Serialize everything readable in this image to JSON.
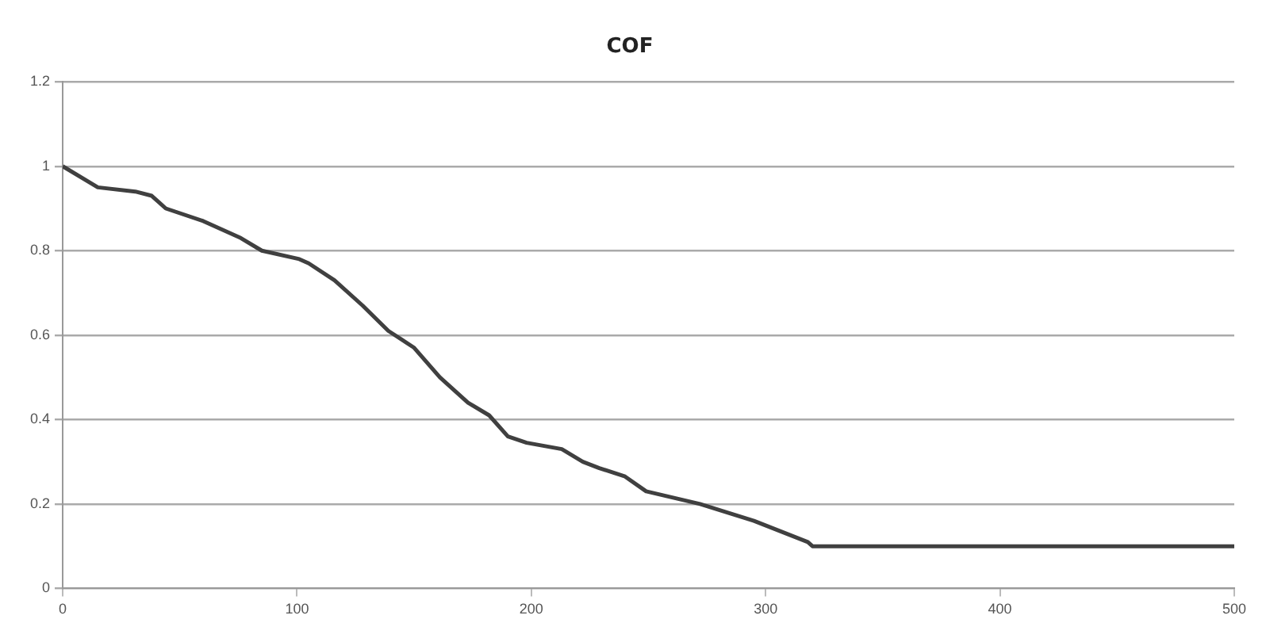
{
  "chart_data": {
    "type": "line",
    "title": "COF",
    "x": [
      0,
      15,
      31,
      38,
      44,
      60,
      76,
      85,
      101,
      105,
      116,
      128,
      139,
      150,
      161,
      173,
      182,
      190,
      198,
      213,
      222,
      229,
      240,
      249,
      272,
      295,
      318,
      320,
      500
    ],
    "series": [
      {
        "color": "#404040",
        "values": [
          1.0,
          0.95,
          0.94,
          0.93,
          0.9,
          0.87,
          0.83,
          0.8,
          0.78,
          0.77,
          0.73,
          0.67,
          0.61,
          0.57,
          0.5,
          0.44,
          0.41,
          0.36,
          0.345,
          0.33,
          0.3,
          0.285,
          0.265,
          0.23,
          0.2,
          0.16,
          0.11,
          0.1,
          0.1
        ]
      }
    ],
    "xlim": [
      0,
      500
    ],
    "xticks": [
      0,
      100,
      200,
      300,
      400,
      500
    ],
    "ylim": [
      0,
      1.2
    ],
    "yticks": [
      0,
      0.2,
      0.4,
      0.6,
      0.8,
      1,
      1.2
    ],
    "grid": "y",
    "legend": false,
    "marker": "none",
    "line_style": "solid"
  }
}
